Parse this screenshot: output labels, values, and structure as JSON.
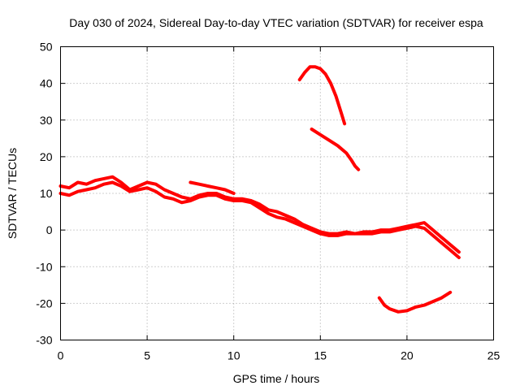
{
  "chart_data": {
    "type": "line",
    "title": "Day 030 of 2024, Sidereal Day-to-day VTEC variation (SDTVAR) for receiver espa",
    "xlabel": "GPS time / hours",
    "ylabel": "SDTVAR / TECUs",
    "xlim": [
      0,
      25
    ],
    "ylim": [
      -30,
      50
    ],
    "xticks": [
      0,
      5,
      10,
      15,
      20,
      25
    ],
    "yticks": [
      -30,
      -20,
      -10,
      0,
      10,
      20,
      30,
      40,
      50
    ],
    "xtick_labels": [
      "0",
      "5",
      "10",
      "15",
      "20",
      "25"
    ],
    "ytick_labels": [
      "-30",
      "-20",
      "-10",
      "0",
      "10",
      "20",
      "30",
      "40",
      "50"
    ],
    "grid": true,
    "color": "#ff0000",
    "series": [
      {
        "name": "track-main-a",
        "points": [
          [
            0,
            12
          ],
          [
            0.5,
            11.5
          ],
          [
            1,
            13
          ],
          [
            1.5,
            12.5
          ],
          [
            2,
            13.5
          ],
          [
            2.5,
            14
          ],
          [
            3,
            14.5
          ],
          [
            3.5,
            13
          ],
          [
            4,
            11
          ],
          [
            4.5,
            12
          ],
          [
            5,
            13
          ],
          [
            5.5,
            12.5
          ],
          [
            6,
            11
          ],
          [
            6.5,
            10
          ],
          [
            7,
            9
          ],
          [
            7.5,
            8.5
          ],
          [
            8,
            9.5
          ],
          [
            8.5,
            10
          ],
          [
            9,
            10
          ],
          [
            9.5,
            9
          ],
          [
            10,
            8.5
          ],
          [
            10.5,
            8.5
          ],
          [
            11,
            8
          ],
          [
            11.5,
            7
          ],
          [
            12,
            5.5
          ],
          [
            12.5,
            5
          ],
          [
            13,
            4
          ],
          [
            13.5,
            3
          ],
          [
            14,
            1.5
          ],
          [
            14.5,
            0.5
          ],
          [
            15,
            -0.5
          ],
          [
            15.5,
            -1
          ],
          [
            16,
            -1
          ],
          [
            16.5,
            -0.5
          ],
          [
            17,
            -1
          ],
          [
            17.5,
            -0.5
          ],
          [
            18,
            -0.5
          ],
          [
            18.5,
            0
          ],
          [
            19,
            0
          ],
          [
            19.5,
            0.5
          ],
          [
            20,
            1
          ],
          [
            20.5,
            1.5
          ],
          [
            21,
            2
          ],
          [
            21.5,
            0
          ],
          [
            22,
            -2
          ],
          [
            22.5,
            -4
          ],
          [
            23,
            -6
          ]
        ]
      },
      {
        "name": "track-main-b",
        "points": [
          [
            0,
            10
          ],
          [
            0.5,
            9.5
          ],
          [
            1,
            10.5
          ],
          [
            1.5,
            11
          ],
          [
            2,
            11.5
          ],
          [
            2.5,
            12.5
          ],
          [
            3,
            13
          ],
          [
            3.5,
            12
          ],
          [
            4,
            10.5
          ],
          [
            4.5,
            11
          ],
          [
            5,
            11.5
          ],
          [
            5.5,
            10.5
          ],
          [
            6,
            9
          ],
          [
            6.5,
            8.5
          ],
          [
            7,
            7.5
          ],
          [
            7.5,
            8
          ],
          [
            8,
            9
          ],
          [
            8.5,
            9.5
          ],
          [
            9,
            9.5
          ],
          [
            9.5,
            8.5
          ],
          [
            10,
            8
          ],
          [
            10.5,
            8
          ],
          [
            11,
            7.5
          ],
          [
            11.5,
            6
          ],
          [
            12,
            4.5
          ],
          [
            12.5,
            3.5
          ],
          [
            13,
            3
          ],
          [
            13.5,
            2
          ],
          [
            14,
            1
          ],
          [
            14.5,
            0
          ],
          [
            15,
            -1
          ],
          [
            15.5,
            -1.5
          ],
          [
            16,
            -1.5
          ],
          [
            16.5,
            -1
          ],
          [
            17,
            -1
          ],
          [
            17.5,
            -1
          ],
          [
            18,
            -1
          ],
          [
            18.5,
            -0.5
          ],
          [
            19,
            -0.5
          ],
          [
            19.5,
            0
          ],
          [
            20,
            0.5
          ],
          [
            20.5,
            1
          ],
          [
            21,
            0.5
          ],
          [
            21.5,
            -1.5
          ],
          [
            22,
            -3.5
          ],
          [
            22.5,
            -5.5
          ],
          [
            23,
            -7.5
          ]
        ]
      },
      {
        "name": "track-high-arc",
        "points": [
          [
            13.8,
            41
          ],
          [
            14.1,
            43
          ],
          [
            14.4,
            44.5
          ],
          [
            14.7,
            44.5
          ],
          [
            15,
            44
          ],
          [
            15.3,
            42.5
          ],
          [
            15.6,
            40
          ],
          [
            15.9,
            36.5
          ],
          [
            16.2,
            32
          ],
          [
            16.4,
            29
          ]
        ]
      },
      {
        "name": "track-descending",
        "points": [
          [
            14.5,
            27.5
          ],
          [
            15,
            26
          ],
          [
            15.5,
            24.5
          ],
          [
            16,
            23
          ],
          [
            16.5,
            21
          ],
          [
            16.8,
            19
          ],
          [
            17,
            17.5
          ],
          [
            17.2,
            16.5
          ]
        ]
      },
      {
        "name": "track-low-arc",
        "points": [
          [
            18.4,
            -18.5
          ],
          [
            18.7,
            -20.5
          ],
          [
            19,
            -21.5
          ],
          [
            19.5,
            -22.3
          ],
          [
            20,
            -22
          ],
          [
            20.5,
            -21
          ],
          [
            21,
            -20.5
          ],
          [
            21.5,
            -19.5
          ],
          [
            22,
            -18.5
          ],
          [
            22.5,
            -17
          ]
        ]
      },
      {
        "name": "track-segment-7h",
        "points": [
          [
            7.5,
            13
          ],
          [
            8,
            12.5
          ],
          [
            8.5,
            12
          ],
          [
            9,
            11.5
          ],
          [
            9.5,
            11
          ],
          [
            10,
            10
          ]
        ]
      }
    ]
  }
}
